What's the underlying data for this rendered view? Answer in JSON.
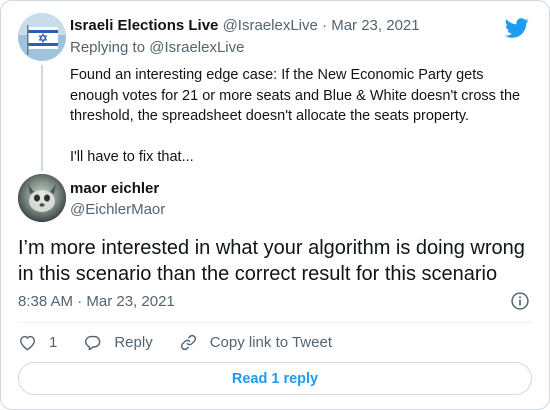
{
  "parent_tweet": {
    "display_name": "Israeli Elections Live",
    "handle": "@IsraelexLive",
    "separator": "·",
    "date": "Mar 23, 2021",
    "replying_to_label": "Replying to",
    "replying_to_handle": "@IsraelexLive",
    "text_paragraph_1": "Found an interesting edge case: If the New Economic Party gets enough votes for 21 or more seats and Blue & White doesn't cross the threshold, the spreadsheet doesn't allocate the seats property.",
    "text_paragraph_2": "I'll have to fix that..."
  },
  "main_tweet": {
    "display_name": "maor eichler",
    "handle": "@EichlerMaor",
    "text": "I’m more interested in what your algorithm is doing wrong in this scenario than the correct result for this scenario",
    "timestamp": "8:38 AM · Mar 23, 2021"
  },
  "actions": {
    "like_count": "1",
    "reply_label": "Reply",
    "copy_link_label": "Copy link to Tweet"
  },
  "read_replies_label": "Read 1 reply",
  "colors": {
    "accent": "#1d9bf0",
    "text": "#0f1419",
    "muted": "#536471",
    "border": "#cfd9de"
  },
  "icons": [
    "twitter-logo-icon",
    "info-icon",
    "heart-icon",
    "reply-icon",
    "link-icon"
  ]
}
